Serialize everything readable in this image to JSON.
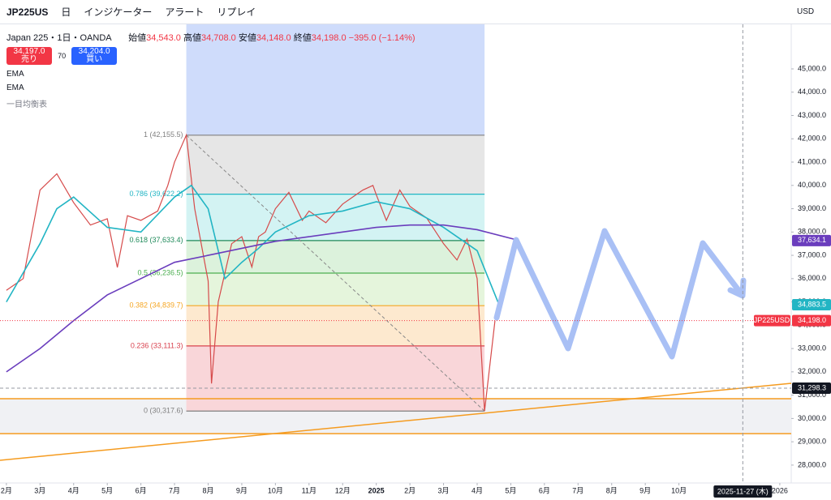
{
  "toolbar": {
    "symbol": "JP225US",
    "interval": "日",
    "indicators": "インジケーター",
    "alert": "アラート",
    "replay": "リプレイ",
    "currency": "USD"
  },
  "legend": {
    "title": "Japan 225・1日・OANDA",
    "open_label": "始値",
    "open": "34,543.0",
    "high_label": "高値",
    "high": "34,708.0",
    "low_label": "安値",
    "low": "34,148.0",
    "close_label": "終値",
    "close": "34,198.0",
    "change": "−395.0 (−1.14%)",
    "sell_price": "34,197.0",
    "sell": "売り",
    "spread": "70",
    "buy_price": "34,204.0",
    "buy": "買い",
    "indicators": [
      "EMA",
      "EMA",
      "一目均衡表"
    ]
  },
  "chart_data": {
    "type": "line",
    "x": [
      0,
      0.5,
      1,
      1.5,
      2,
      2.5,
      3,
      3.3,
      3.6,
      4,
      4.5,
      4.8,
      5,
      5.35,
      5.6,
      6,
      6.1,
      6.3,
      6.7,
      7,
      7.3,
      7.5,
      7.7,
      8,
      8.4,
      8.8,
      9,
      9.5,
      10,
      10.3,
      10.6,
      10.9,
      11,
      11.3,
      11.7,
      12,
      12.5,
      13,
      13.4,
      13.7,
      14,
      14.22,
      14.53
    ],
    "series": [
      {
        "name": "JP225USD",
        "color": "#d64a4a",
        "values": [
          35500,
          36000,
          39800,
          40500,
          39260,
          38300,
          38570,
          36480,
          38700,
          38500,
          38900,
          40000,
          41000,
          42155.5,
          39000,
          35900,
          31500,
          35000,
          37500,
          37800,
          36500,
          37800,
          38000,
          39000,
          39700,
          38500,
          38900,
          38400,
          39200,
          39500,
          39800,
          40000,
          39600,
          38500,
          39800,
          39100,
          38600,
          37500,
          36800,
          37700,
          36000,
          30317.6,
          34198
        ]
      },
      {
        "name": "EMA",
        "color": "#22b5c4",
        "x": [
          0,
          1,
          1.5,
          2,
          3,
          4,
          5,
          5.5,
          6,
          6.5,
          7,
          7.5,
          8,
          9,
          10,
          11,
          12,
          13,
          14,
          14.65
        ],
        "values": [
          35000,
          37500,
          39000,
          39500,
          38200,
          38000,
          39500,
          40000,
          39000,
          36000,
          36700,
          37300,
          38000,
          38700,
          38900,
          39300,
          39000,
          38200,
          37200,
          34883.5
        ]
      },
      {
        "name": "EMA",
        "color": "#6a3dbd",
        "x": [
          0,
          1,
          2,
          3,
          4,
          5,
          6,
          7,
          8,
          9,
          10,
          11,
          12,
          13,
          14,
          15.25
        ],
        "values": [
          32000,
          33000,
          34200,
          35300,
          36000,
          36700,
          37000,
          37300,
          37600,
          37800,
          38000,
          38200,
          38300,
          38300,
          38100,
          37634.1
        ]
      }
    ],
    "xlim": [
      -0.19,
      23.34
    ],
    "ylim": [
      27232,
      46912
    ],
    "xticks": [
      {
        "value": 0,
        "label": "2月"
      },
      {
        "value": 1,
        "label": "3月"
      },
      {
        "value": 2,
        "label": "4月"
      },
      {
        "value": 3,
        "label": "5月"
      },
      {
        "value": 4,
        "label": "6月"
      },
      {
        "value": 5,
        "label": "7月"
      },
      {
        "value": 6,
        "label": "8月"
      },
      {
        "value": 7,
        "label": "9月"
      },
      {
        "value": 8,
        "label": "10月"
      },
      {
        "value": 9,
        "label": "11月"
      },
      {
        "value": 10,
        "label": "12月"
      },
      {
        "value": 11,
        "label": "2025"
      },
      {
        "value": 12,
        "label": "2月"
      },
      {
        "value": 13,
        "label": "3月"
      },
      {
        "value": 14,
        "label": "4月"
      },
      {
        "value": 15,
        "label": "5月"
      },
      {
        "value": 16,
        "label": "6月"
      },
      {
        "value": 17,
        "label": "7月"
      },
      {
        "value": 18,
        "label": "8月"
      },
      {
        "value": 19,
        "label": "9月"
      },
      {
        "value": 20,
        "label": "10月"
      },
      {
        "value": 23,
        "label": "2026"
      }
    ],
    "yticks": [
      {
        "value": 45000,
        "label": "45,000.0"
      },
      {
        "value": 44000,
        "label": "44,000.0"
      },
      {
        "value": 43000,
        "label": "43,000.0"
      },
      {
        "value": 42000,
        "label": "42,000.0"
      },
      {
        "value": 41000,
        "label": "41,000.0"
      },
      {
        "value": 40000,
        "label": "40,000.0"
      },
      {
        "value": 39000,
        "label": "39,000.0"
      },
      {
        "value": 38000,
        "label": "38,000.0"
      },
      {
        "value": 37000,
        "label": "37,000.0"
      },
      {
        "value": 36000,
        "label": "36,000.0"
      },
      {
        "value": 35000,
        "label": "35,000.0"
      },
      {
        "value": 34000,
        "label": "34,000.0"
      },
      {
        "value": 33000,
        "label": "33,000.0"
      },
      {
        "value": 32000,
        "label": "32,000.0"
      },
      {
        "value": 31000,
        "label": "31,000.0"
      },
      {
        "value": 30000,
        "label": "30,000.0"
      },
      {
        "value": 29000,
        "label": "29,000.0"
      },
      {
        "value": 28000,
        "label": "28,000.0"
      }
    ],
    "fib_x": [
      5.35,
      14.22
    ],
    "fib_levels": [
      {
        "value": 42155.5,
        "label": "1 (42,155.5)",
        "color": "#808080",
        "fill": "#e6e6e6"
      },
      {
        "value": 39622.2,
        "label": "0.786 (39,622.2)",
        "color": "#22b5c4",
        "fill": "#d3f3f3"
      },
      {
        "value": 37633.4,
        "label": "0.618 (37,633.4)",
        "color": "#1f8a5a",
        "fill": "#dcf2dc"
      },
      {
        "value": 36236.5,
        "label": "0.5 (36,236.5)",
        "color": "#4caf50",
        "fill": "#e5f5dc"
      },
      {
        "value": 34839.7,
        "label": "0.382 (34,839.7)",
        "color": "#f5a623",
        "fill": "#fde9cf"
      },
      {
        "value": 33111.3,
        "label": "0.236 (33,111.3)",
        "color": "#d9424f",
        "fill": "#f9d6d9"
      },
      {
        "value": 30317.6,
        "label": "0 (30,317.6)",
        "color": "#808080"
      }
    ],
    "price_labels": [
      {
        "value": 37634.1,
        "label": "37,634.1",
        "color": "#6a3dbd"
      },
      {
        "value": 34883.5,
        "label": "34,883.5",
        "color": "#22b5c4"
      },
      {
        "value": 34198,
        "label": "34,198.0",
        "color": "#f23645",
        "name": "JP225USD"
      },
      {
        "value": 31298.3,
        "label": "31,298.3",
        "color": "#131722"
      }
    ],
    "crosshair": {
      "value": 21.9,
      "label": "2025-11-27 (木)"
    }
  }
}
